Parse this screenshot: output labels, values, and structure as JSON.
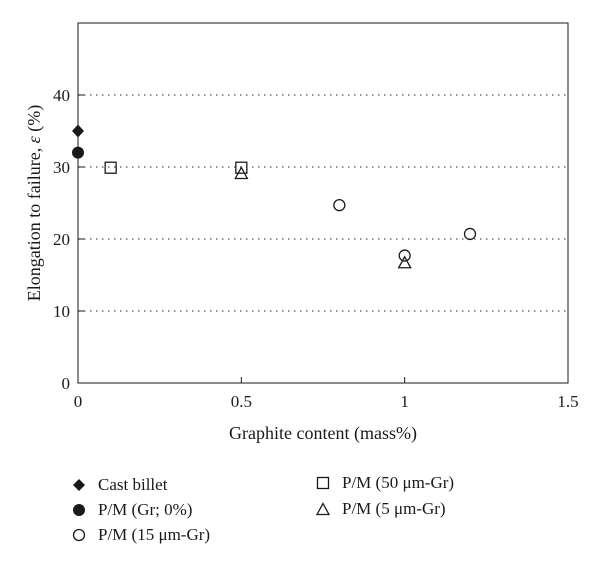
{
  "chart_data": {
    "type": "scatter",
    "xlabel": "Graphite content (mass%)",
    "ylabel_prefix": "Elongation to failure, ",
    "ylabel_symbol": "ε",
    "ylabel_suffix": " (%)",
    "xlim": [
      0,
      1.5
    ],
    "ylim": [
      0,
      50
    ],
    "xticks": [
      0,
      0.5,
      1,
      1.5
    ],
    "xtick_labels": [
      "0",
      "0.5",
      "1",
      "1.5"
    ],
    "yticks": [
      0,
      10,
      20,
      30,
      40
    ],
    "ytick_labels": [
      "0",
      "10",
      "20",
      "30",
      "40"
    ],
    "grid": "horizontal dotted",
    "legend_position": "bottom",
    "series": [
      {
        "name": "Cast billet",
        "marker": "diamond-filled",
        "points": [
          [
            0,
            35
          ]
        ]
      },
      {
        "name": "P/M (Gr; 0%)",
        "marker": "circle-filled",
        "points": [
          [
            0,
            32
          ]
        ]
      },
      {
        "name": "P/M (15 μm-Gr)",
        "marker": "circle-open",
        "points": [
          [
            0.8,
            24.7
          ],
          [
            1.0,
            17.7
          ],
          [
            1.2,
            20.7
          ]
        ]
      },
      {
        "name": "P/M (50 μm-Gr)",
        "marker": "square-open",
        "points": [
          [
            0.1,
            29.9
          ],
          [
            0.5,
            29.9
          ]
        ]
      },
      {
        "name": "P/M (5 μm-Gr)",
        "marker": "triangle-open",
        "points": [
          [
            0.5,
            29.1
          ],
          [
            1.0,
            16.7
          ]
        ]
      }
    ]
  }
}
